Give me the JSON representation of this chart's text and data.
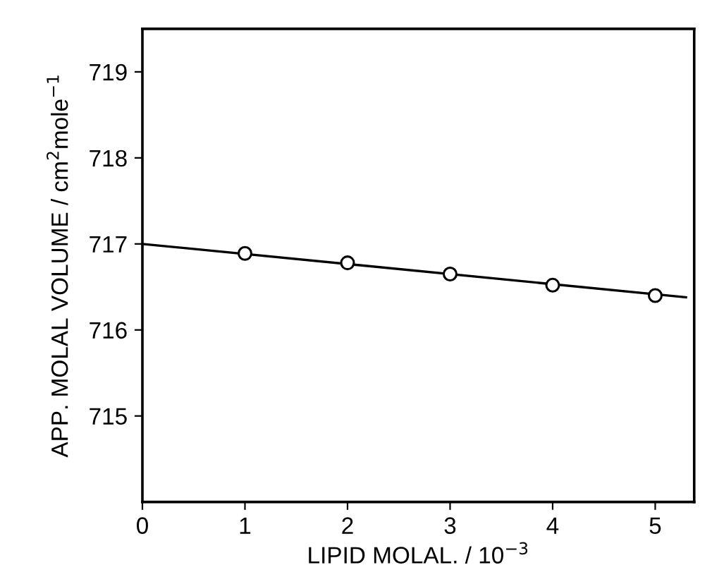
{
  "chart_data": {
    "type": "scatter",
    "xlabel": "LIPID MOLAL. / 10$^{−3}$",
    "ylabel": "APP. MOLAL VOLUME / cm$^{2}$mole$^{−1}$",
    "xlim": [
      0,
      5.38
    ],
    "ylim": [
      714.0,
      719.5
    ],
    "xticks": [
      0,
      1,
      2,
      3,
      4,
      5
    ],
    "yticks": [
      715,
      716,
      717,
      718,
      719
    ],
    "grid": false,
    "legend": false,
    "series": [
      {
        "type": "line",
        "color": "#000000",
        "x": [
          0,
          5.3
        ],
        "values": [
          717.0,
          716.38
        ],
        "marker": "none",
        "line_style": "solid"
      },
      {
        "color": "#000000",
        "x": [
          1,
          2,
          3,
          4,
          5
        ],
        "values": [
          716.89,
          716.78,
          716.65,
          716.52,
          716.4
        ],
        "marker": "circle"
      }
    ]
  }
}
